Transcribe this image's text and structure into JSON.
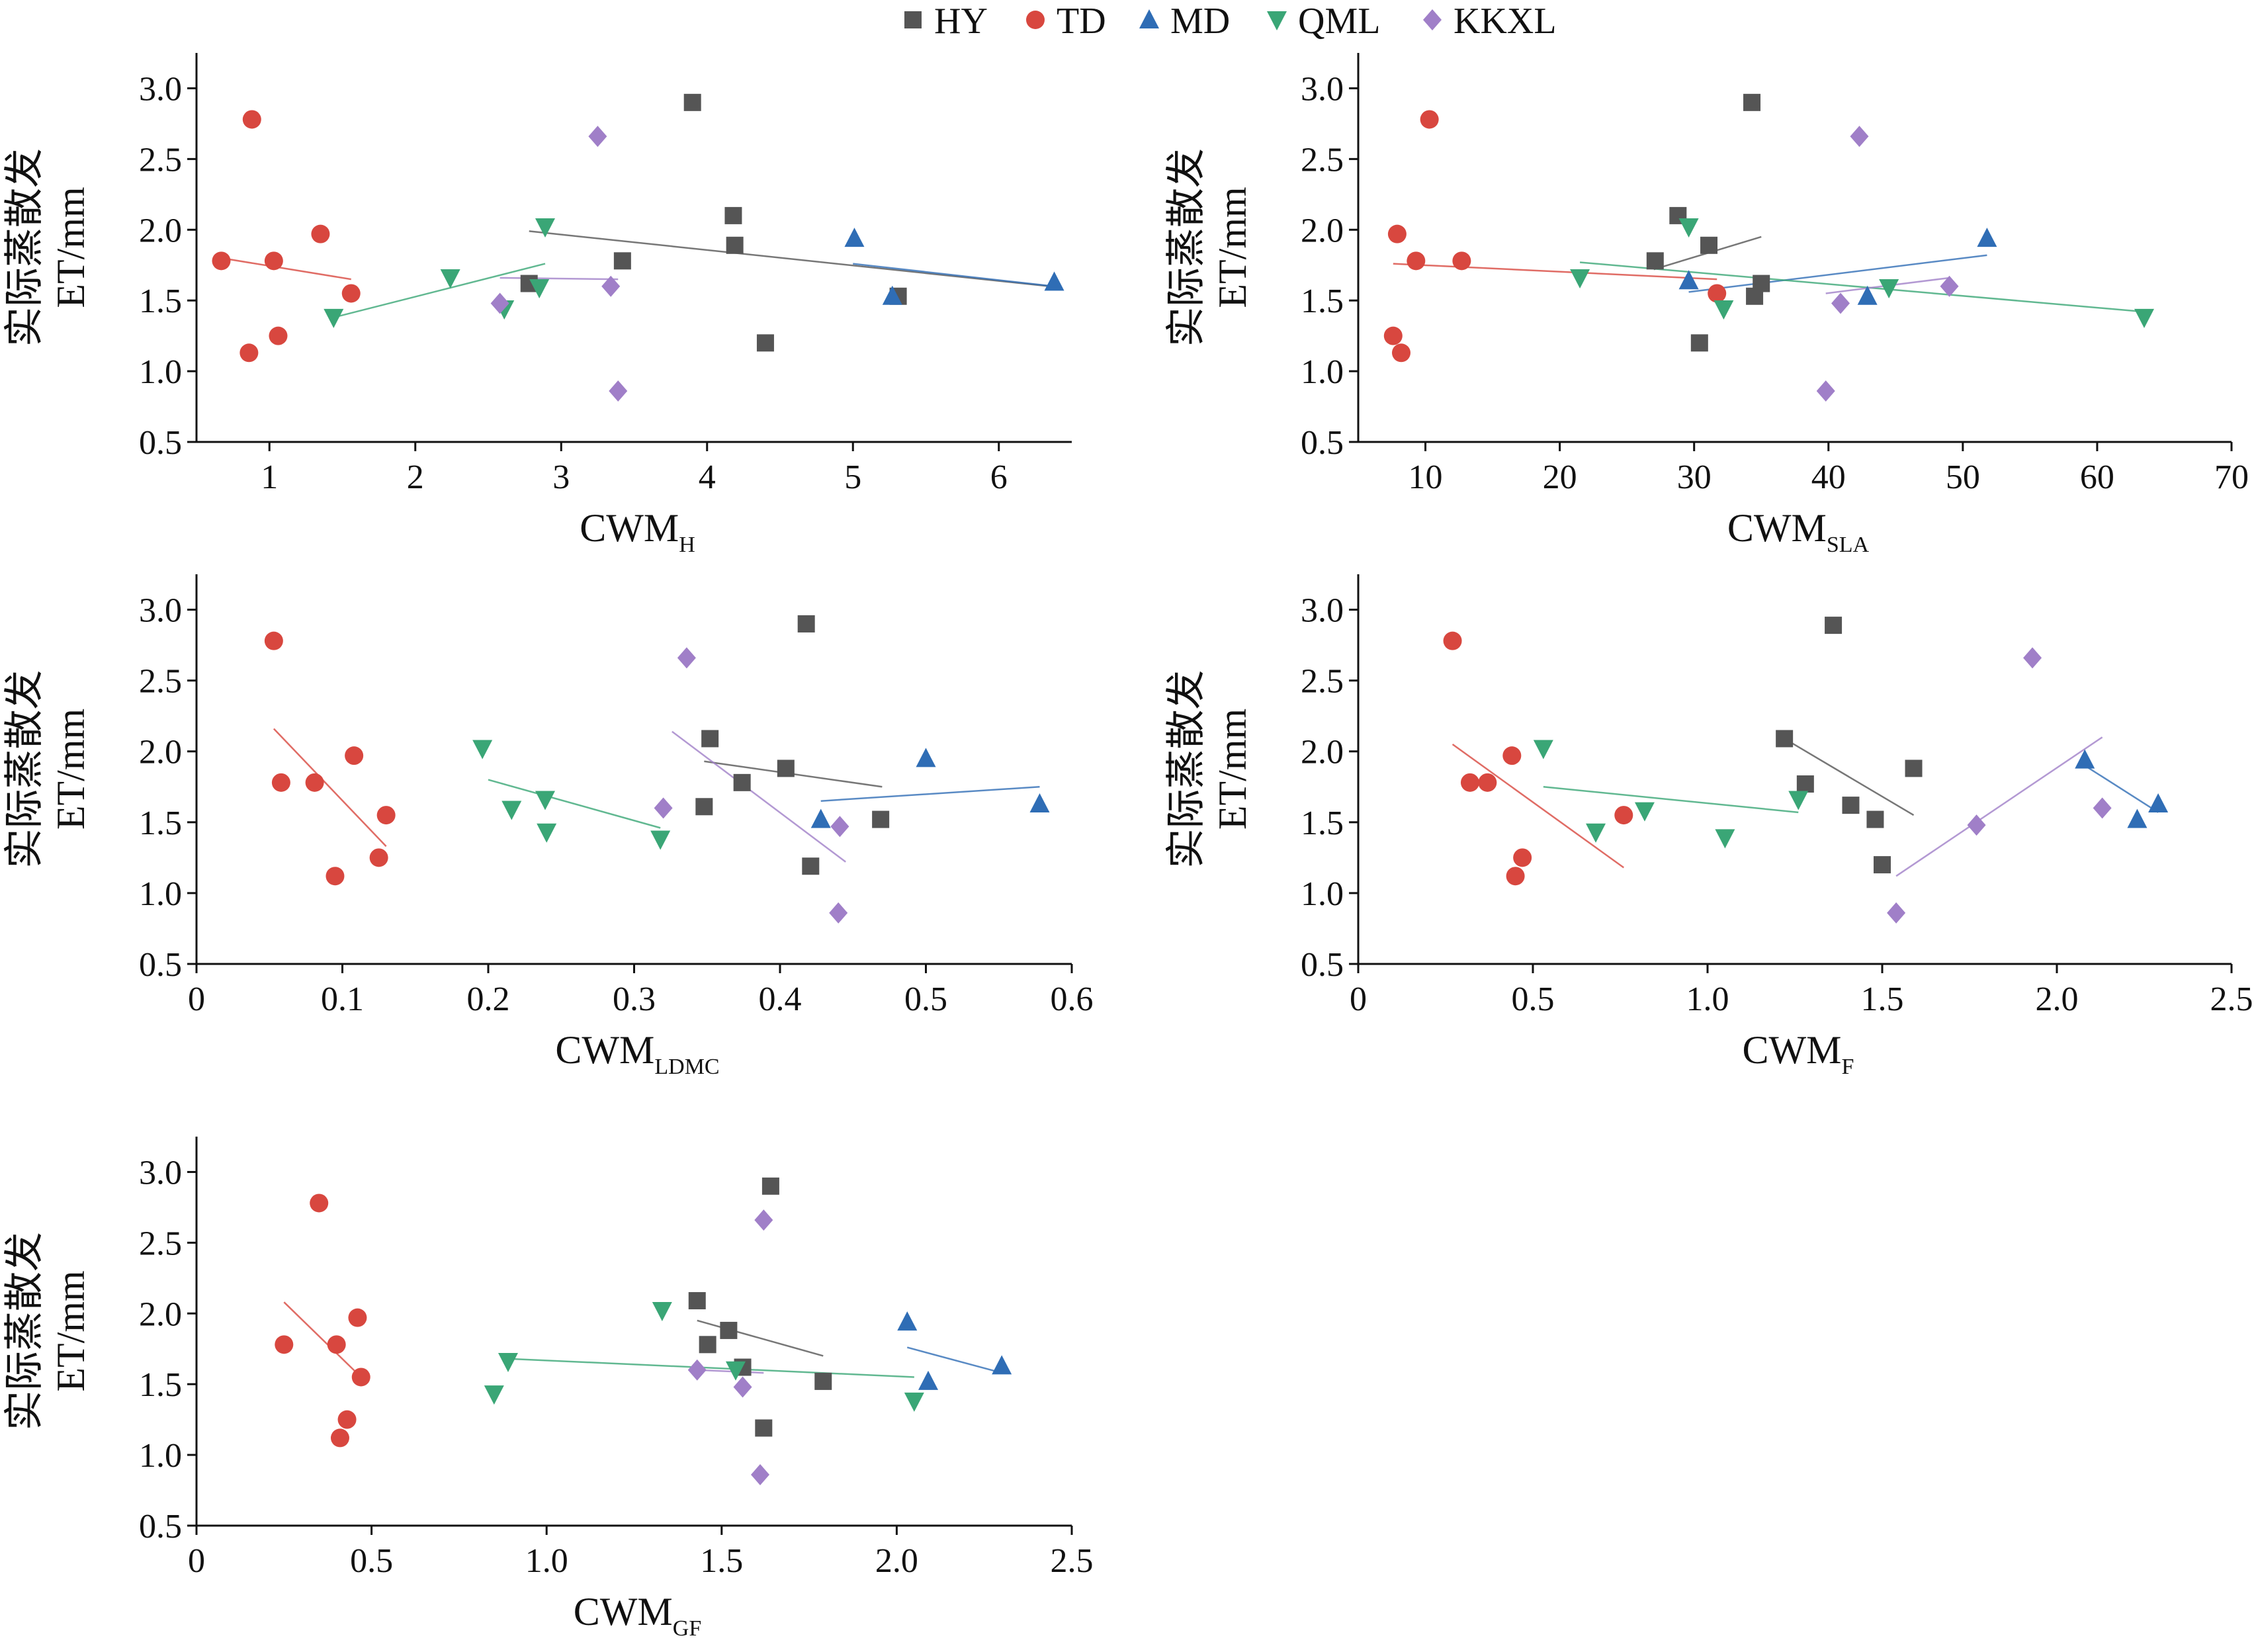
{
  "legend": {
    "entries": [
      {
        "key": "HY",
        "label": "HY",
        "color": "#555555",
        "marker": "square"
      },
      {
        "key": "TD",
        "label": "TD",
        "color": "#d8473f",
        "marker": "circle"
      },
      {
        "key": "MD",
        "label": "MD",
        "color": "#2f6db5",
        "marker": "triangle-up"
      },
      {
        "key": "QML",
        "label": "QML",
        "color": "#3aa676",
        "marker": "triangle-down"
      },
      {
        "key": "KKXL",
        "label": "KKXL",
        "color": "#a07fc8",
        "marker": "diamond"
      }
    ]
  },
  "chart_data": [
    {
      "type": "scatter",
      "ylabel_cn": "实际蒸散发",
      "ylabel": "ET/mm",
      "xlabel_main": "CWM",
      "xlabel_sub": "H",
      "xlim": [
        0.5,
        6.5
      ],
      "ylim": [
        0.5,
        3.25
      ],
      "xticks": [
        1,
        2,
        3,
        4,
        5,
        6
      ],
      "xtick_labels": [
        "1",
        "2",
        "3",
        "4",
        "5",
        "6"
      ],
      "yticks": [
        0.5,
        1.0,
        1.5,
        2.0,
        2.5,
        3.0
      ],
      "ytick_labels": [
        "0.5",
        "1.0",
        "1.5",
        "2.0",
        "2.5",
        "3.0"
      ],
      "series": [
        {
          "name": "HY",
          "x": [
            2.78,
            3.42,
            3.9,
            4.18,
            4.19,
            4.4,
            5.31
          ],
          "y": [
            1.62,
            1.78,
            2.9,
            2.1,
            1.89,
            1.2,
            1.53
          ],
          "fit": [
            [
              2.78,
              1.99
            ],
            [
              6.35,
              1.6
            ]
          ]
        },
        {
          "name": "TD",
          "x": [
            0.67,
            0.86,
            0.88,
            1.03,
            1.06,
            1.35,
            1.56
          ],
          "y": [
            1.78,
            1.13,
            2.78,
            1.78,
            1.25,
            1.97,
            1.55
          ],
          "fit": [
            [
              0.67,
              1.8
            ],
            [
              1.56,
              1.65
            ]
          ]
        },
        {
          "name": "MD",
          "x": [
            5.01,
            5.27,
            6.38
          ],
          "y": [
            1.94,
            1.53,
            1.63
          ],
          "fit": [
            [
              5.0,
              1.76
            ],
            [
              6.38,
              1.6
            ]
          ]
        },
        {
          "name": "QML",
          "x": [
            1.44,
            2.24,
            2.61,
            2.85,
            2.89
          ],
          "y": [
            1.38,
            1.66,
            1.44,
            1.59,
            2.02
          ],
          "fit": [
            [
              1.44,
              1.38
            ],
            [
              2.89,
              1.76
            ]
          ]
        },
        {
          "name": "KKXL",
          "x": [
            2.58,
            3.25,
            3.34,
            3.39
          ],
          "y": [
            1.48,
            2.66,
            1.6,
            0.86
          ],
          "fit": [
            [
              2.58,
              1.66
            ],
            [
              3.39,
              1.65
            ]
          ]
        }
      ]
    },
    {
      "type": "scatter",
      "ylabel_cn": "实际蒸散发",
      "ylabel": "ET/mm",
      "xlabel_main": "CWM",
      "xlabel_sub": "SLA",
      "xlim": [
        5,
        70
      ],
      "ylim": [
        0.5,
        3.25
      ],
      "xticks": [
        10,
        20,
        30,
        40,
        50,
        60,
        70
      ],
      "xtick_labels": [
        "10",
        "20",
        "30",
        "40",
        "50",
        "60",
        "70"
      ],
      "yticks": [
        0.5,
        1.0,
        1.5,
        2.0,
        2.5,
        3.0
      ],
      "ytick_labels": [
        "0.5",
        "1.0",
        "1.5",
        "2.0",
        "2.5",
        "3.0"
      ],
      "series": [
        {
          "name": "HY",
          "x": [
            27.1,
            28.8,
            30.4,
            31.1,
            34.3,
            34.5,
            35.0
          ],
          "y": [
            1.78,
            2.1,
            1.2,
            1.89,
            2.9,
            1.53,
            1.62
          ],
          "fit": [
            [
              27.0,
              1.72
            ],
            [
              35.0,
              1.95
            ]
          ]
        },
        {
          "name": "TD",
          "x": [
            7.6,
            7.9,
            8.2,
            9.3,
            10.3,
            12.7,
            31.7
          ],
          "y": [
            1.25,
            1.97,
            1.13,
            1.78,
            2.78,
            1.78,
            1.55
          ],
          "fit": [
            [
              7.6,
              1.76
            ],
            [
              31.7,
              1.65
            ]
          ]
        },
        {
          "name": "MD",
          "x": [
            29.6,
            42.9,
            51.8
          ],
          "y": [
            1.64,
            1.53,
            1.94
          ],
          "fit": [
            [
              29.6,
              1.56
            ],
            [
              51.8,
              1.82
            ]
          ]
        },
        {
          "name": "QML",
          "x": [
            21.5,
            29.6,
            32.2,
            44.5,
            63.5
          ],
          "y": [
            1.66,
            2.02,
            1.44,
            1.59,
            1.38
          ],
          "fit": [
            [
              21.5,
              1.77
            ],
            [
              63.5,
              1.42
            ]
          ]
        },
        {
          "name": "KKXL",
          "x": [
            39.8,
            40.9,
            42.3,
            49.0
          ],
          "y": [
            0.86,
            1.48,
            2.66,
            1.6
          ],
          "fit": [
            [
              39.8,
              1.55
            ],
            [
              49.0,
              1.66
            ]
          ]
        }
      ]
    },
    {
      "type": "scatter",
      "ylabel_cn": "实际蒸散发",
      "ylabel": "ET/mm",
      "xlabel_main": "CWM",
      "xlabel_sub": "LDMC",
      "xlim": [
        0,
        0.6
      ],
      "ylim": [
        0.5,
        3.25
      ],
      "xticks": [
        0,
        0.1,
        0.2,
        0.3,
        0.4,
        0.5,
        0.6
      ],
      "xtick_labels": [
        "0",
        "0.1",
        "0.2",
        "0.3",
        "0.4",
        "0.5",
        "0.6"
      ],
      "yticks": [
        0.5,
        1.0,
        1.5,
        2.0,
        2.5,
        3.0
      ],
      "ytick_labels": [
        "0.5",
        "1.0",
        "1.5",
        "2.0",
        "2.5",
        "3.0"
      ],
      "series": [
        {
          "name": "HY",
          "x": [
            0.348,
            0.352,
            0.374,
            0.404,
            0.418,
            0.421,
            0.469
          ],
          "y": [
            1.61,
            2.09,
            1.78,
            1.88,
            2.9,
            1.19,
            1.52
          ],
          "fit": [
            [
              0.348,
              1.93
            ],
            [
              0.47,
              1.75
            ]
          ]
        },
        {
          "name": "TD",
          "x": [
            0.053,
            0.058,
            0.081,
            0.095,
            0.108,
            0.125,
            0.13
          ],
          "y": [
            2.78,
            1.78,
            1.78,
            1.12,
            1.97,
            1.25,
            1.55
          ],
          "fit": [
            [
              0.053,
              2.16
            ],
            [
              0.13,
              1.33
            ]
          ]
        },
        {
          "name": "MD",
          "x": [
            0.428,
            0.5,
            0.578
          ],
          "y": [
            1.52,
            1.95,
            1.63
          ],
          "fit": [
            [
              0.428,
              1.65
            ],
            [
              0.578,
              1.75
            ]
          ]
        },
        {
          "name": "QML",
          "x": [
            0.196,
            0.216,
            0.239,
            0.24,
            0.318
          ],
          "y": [
            2.02,
            1.59,
            1.66,
            1.43,
            1.38
          ],
          "fit": [
            [
              0.2,
              1.8
            ],
            [
              0.318,
              1.46
            ]
          ]
        },
        {
          "name": "KKXL",
          "x": [
            0.32,
            0.336,
            0.44,
            0.441
          ],
          "y": [
            1.6,
            2.66,
            0.86,
            1.47
          ],
          "fit": [
            [
              0.326,
              2.14
            ],
            [
              0.445,
              1.22
            ]
          ]
        }
      ]
    },
    {
      "type": "scatter",
      "ylabel_cn": "实际蒸散发",
      "ylabel": "ET/mm",
      "xlabel_main": "CWM",
      "xlabel_sub": "F",
      "xlim": [
        0,
        2.5
      ],
      "ylim": [
        0.5,
        3.25
      ],
      "xticks": [
        0,
        0.5,
        1.0,
        1.5,
        2.0,
        2.5
      ],
      "xtick_labels": [
        "0",
        "0.5",
        "1.0",
        "1.5",
        "2.0",
        "2.5"
      ],
      "yticks": [
        0.5,
        1.0,
        1.5,
        2.0,
        2.5,
        3.0
      ],
      "ytick_labels": [
        "0.5",
        "1.0",
        "1.5",
        "2.0",
        "2.5",
        "3.0"
      ],
      "series": [
        {
          "name": "HY",
          "x": [
            1.22,
            1.28,
            1.36,
            1.41,
            1.48,
            1.5,
            1.59
          ],
          "y": [
            2.09,
            1.77,
            2.89,
            1.62,
            1.52,
            1.2,
            1.88
          ],
          "fit": [
            [
              1.22,
              2.09
            ],
            [
              1.59,
              1.55
            ]
          ]
        },
        {
          "name": "TD",
          "x": [
            0.27,
            0.32,
            0.37,
            0.44,
            0.45,
            0.47,
            0.76
          ],
          "y": [
            2.78,
            1.78,
            1.78,
            1.97,
            1.12,
            1.25,
            1.55
          ],
          "fit": [
            [
              0.27,
              2.05
            ],
            [
              0.76,
              1.18
            ]
          ]
        },
        {
          "name": "MD",
          "x": [
            2.08,
            2.23,
            2.29
          ],
          "y": [
            1.94,
            1.52,
            1.63
          ],
          "fit": [
            [
              2.08,
              1.9
            ],
            [
              2.29,
              1.57
            ]
          ]
        },
        {
          "name": "QML",
          "x": [
            0.53,
            0.68,
            0.82,
            1.05,
            1.26
          ],
          "y": [
            2.02,
            1.43,
            1.58,
            1.39,
            1.66
          ],
          "fit": [
            [
              0.53,
              1.75
            ],
            [
              1.26,
              1.57
            ]
          ]
        },
        {
          "name": "KKXL",
          "x": [
            1.54,
            1.77,
            1.93,
            2.13
          ],
          "y": [
            0.86,
            1.48,
            2.66,
            1.6
          ],
          "fit": [
            [
              1.54,
              1.12
            ],
            [
              2.13,
              2.1
            ]
          ]
        }
      ]
    },
    {
      "type": "scatter",
      "ylabel_cn": "实际蒸散发",
      "ylabel": "ET/mm",
      "xlabel_main": "CWM",
      "xlabel_sub": "GF",
      "xlim": [
        0,
        2.5
      ],
      "ylim": [
        0.5,
        3.25
      ],
      "xticks": [
        0,
        0.5,
        1.0,
        1.5,
        2.0,
        2.5
      ],
      "xtick_labels": [
        "0",
        "0.5",
        "1.0",
        "1.5",
        "2.0",
        "2.5"
      ],
      "yticks": [
        0.5,
        1.0,
        1.5,
        2.0,
        2.5,
        3.0
      ],
      "ytick_labels": [
        "0.5",
        "1.0",
        "1.5",
        "2.0",
        "2.5",
        "3.0"
      ],
      "series": [
        {
          "name": "HY",
          "x": [
            1.43,
            1.46,
            1.52,
            1.56,
            1.62,
            1.64,
            1.79
          ],
          "y": [
            2.09,
            1.78,
            1.88,
            1.62,
            1.19,
            2.9,
            1.52
          ],
          "fit": [
            [
              1.43,
              1.95
            ],
            [
              1.79,
              1.7
            ]
          ]
        },
        {
          "name": "TD",
          "x": [
            0.25,
            0.35,
            0.4,
            0.41,
            0.43,
            0.46,
            0.47
          ],
          "y": [
            1.78,
            2.78,
            1.78,
            1.12,
            1.25,
            1.97,
            1.55
          ],
          "fit": [
            [
              0.25,
              2.08
            ],
            [
              0.47,
              1.55
            ]
          ]
        },
        {
          "name": "MD",
          "x": [
            2.03,
            2.09,
            2.3
          ],
          "y": [
            1.94,
            1.52,
            1.63
          ],
          "fit": [
            [
              2.03,
              1.76
            ],
            [
              2.3,
              1.58
            ]
          ]
        },
        {
          "name": "QML",
          "x": [
            0.85,
            0.89,
            1.33,
            1.54,
            2.05
          ],
          "y": [
            1.43,
            1.66,
            2.02,
            1.6,
            1.38
          ],
          "fit": [
            [
              0.89,
              1.68
            ],
            [
              2.05,
              1.55
            ]
          ]
        },
        {
          "name": "KKXL",
          "x": [
            1.43,
            1.56,
            1.61,
            1.62
          ],
          "y": [
            1.6,
            1.48,
            0.86,
            2.66
          ],
          "fit": [
            [
              1.43,
              1.6
            ],
            [
              1.62,
              1.58
            ]
          ]
        }
      ]
    }
  ]
}
